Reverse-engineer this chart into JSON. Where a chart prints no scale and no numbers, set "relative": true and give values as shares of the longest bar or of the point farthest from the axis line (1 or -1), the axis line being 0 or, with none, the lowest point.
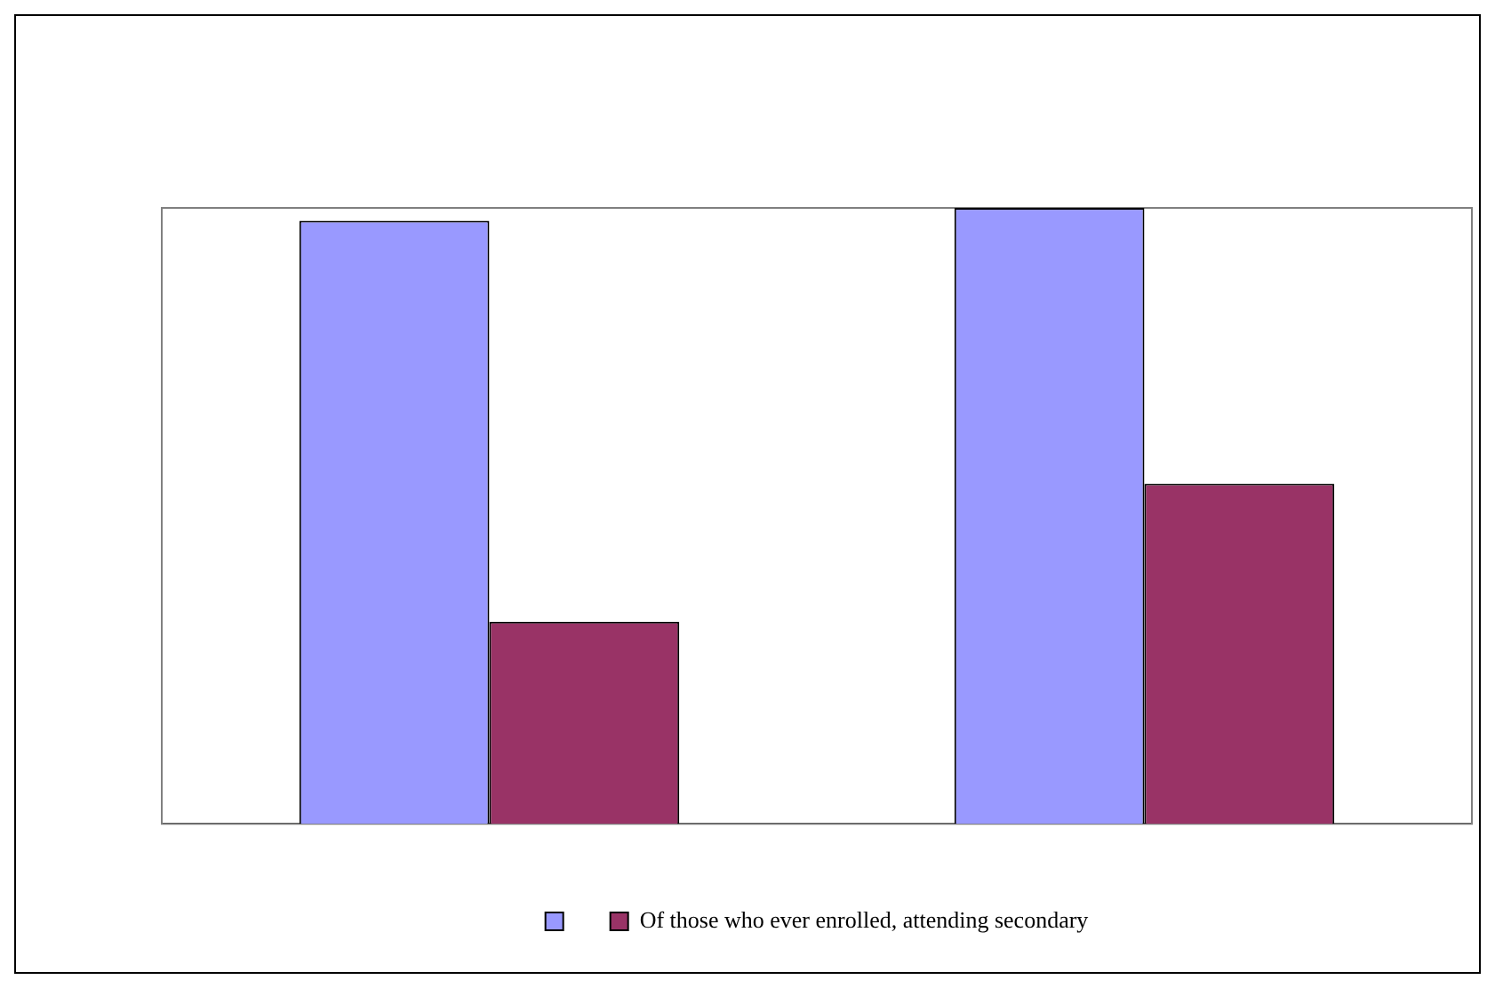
{
  "chart_data": {
    "type": "bar",
    "relative": true,
    "categories": [
      null,
      null
    ],
    "series": [
      {
        "color": "#9999ff",
        "values": [
          0.979,
          1
        ]
      },
      {
        "name": "Of those who ever enrolled, attending secondary",
        "color": "#993366",
        "values": [
          0.328,
          0.552
        ]
      }
    ],
    "legend": "bottom",
    "grid": false
  }
}
